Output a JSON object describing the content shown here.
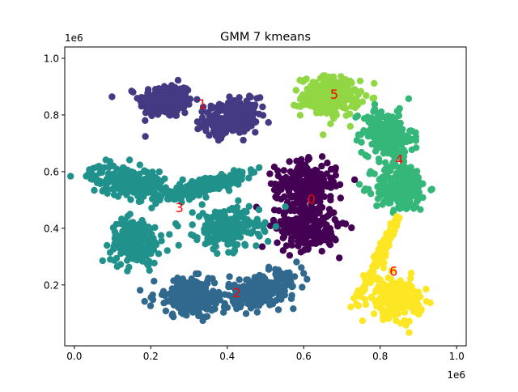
{
  "chart_data": {
    "type": "scatter",
    "title": "GMM 7 kmeans",
    "xlabel": "",
    "ylabel": "",
    "x_offset_text": "1e6",
    "y_offset_text": "1e6",
    "xlim": [
      -25000,
      1025000
    ],
    "ylim": [
      -15000,
      1040000
    ],
    "x_ticks": [
      0,
      200000,
      400000,
      600000,
      800000,
      1000000
    ],
    "x_tick_labels": [
      "0.0",
      "0.2",
      "0.4",
      "0.6",
      "0.8",
      "1.0"
    ],
    "y_ticks": [
      200000,
      400000,
      600000,
      800000,
      1000000
    ],
    "y_tick_labels": [
      "0.2",
      "0.4",
      "0.6",
      "0.8",
      "1.0"
    ],
    "grid": false,
    "legend": "none",
    "colormap": "viridis",
    "cluster_colors": {
      "0": "#440154",
      "1": "#443983",
      "2": "#31688e",
      "3": "#21918c",
      "4": "#35b779",
      "5": "#90d743",
      "6": "#fde725"
    },
    "label_color": "#ff0000",
    "blobs": [
      {
        "cluster": 1,
        "cx": 240000,
        "cy": 850000,
        "sx": 35000,
        "sy": 30000,
        "rho": 0.0,
        "n": 230
      },
      {
        "cluster": 1,
        "cx": 410000,
        "cy": 790000,
        "sx": 35000,
        "sy": 30000,
        "rho": 0.2,
        "n": 230
      },
      {
        "cluster": 5,
        "cx": 670000,
        "cy": 865000,
        "sx": 38000,
        "sy": 35000,
        "rho": 0.0,
        "n": 230
      },
      {
        "cluster": 4,
        "cx": 820000,
        "cy": 730000,
        "sx": 33000,
        "sy": 42000,
        "rho": -0.2,
        "n": 230
      },
      {
        "cluster": 4,
        "cx": 855000,
        "cy": 545000,
        "sx": 35000,
        "sy": 42000,
        "rho": 0.0,
        "n": 230
      },
      {
        "cluster": 0,
        "cx": 605000,
        "cy": 555000,
        "sx": 40000,
        "sy": 38000,
        "rho": 0.0,
        "n": 230
      },
      {
        "cluster": 0,
        "cx": 610000,
        "cy": 405000,
        "sx": 40000,
        "sy": 38000,
        "rho": 0.0,
        "n": 230
      },
      {
        "cluster": 3,
        "cx": 140000,
        "cy": 565000,
        "sx": 50000,
        "sy": 28000,
        "rho": -0.3,
        "n": 230
      },
      {
        "cluster": 3,
        "cx": 340000,
        "cy": 550000,
        "sx": 50000,
        "sy": 22000,
        "rho": 0.75,
        "n": 230
      },
      {
        "cluster": 3,
        "cx": 160000,
        "cy": 355000,
        "sx": 32000,
        "sy": 40000,
        "rho": 0.0,
        "n": 230
      },
      {
        "cluster": 3,
        "cx": 400000,
        "cy": 400000,
        "sx": 42000,
        "sy": 35000,
        "rho": 0.0,
        "n": 230
      },
      {
        "cluster": 2,
        "cx": 310000,
        "cy": 155000,
        "sx": 50000,
        "sy": 33000,
        "rho": 0.0,
        "n": 230
      },
      {
        "cluster": 2,
        "cx": 490000,
        "cy": 180000,
        "sx": 50000,
        "sy": 30000,
        "rho": 0.5,
        "n": 230
      },
      {
        "cluster": 6,
        "cx": 805000,
        "cy": 320000,
        "sx": 25000,
        "sy": 65000,
        "rho": 0.97,
        "n": 150
      },
      {
        "cluster": 6,
        "cx": 840000,
        "cy": 155000,
        "sx": 35000,
        "sy": 35000,
        "rho": 0.0,
        "n": 200
      }
    ],
    "cluster_labels": [
      {
        "text": "0",
        "x": 620000,
        "y": 500000
      },
      {
        "text": "1",
        "x": 335000,
        "y": 835000
      },
      {
        "text": "2",
        "x": 425000,
        "y": 170000
      },
      {
        "text": "3",
        "x": 275000,
        "y": 470000
      },
      {
        "text": "4",
        "x": 850000,
        "y": 640000
      },
      {
        "text": "5",
        "x": 680000,
        "y": 870000
      },
      {
        "text": "6",
        "x": 835000,
        "y": 245000
      }
    ]
  }
}
